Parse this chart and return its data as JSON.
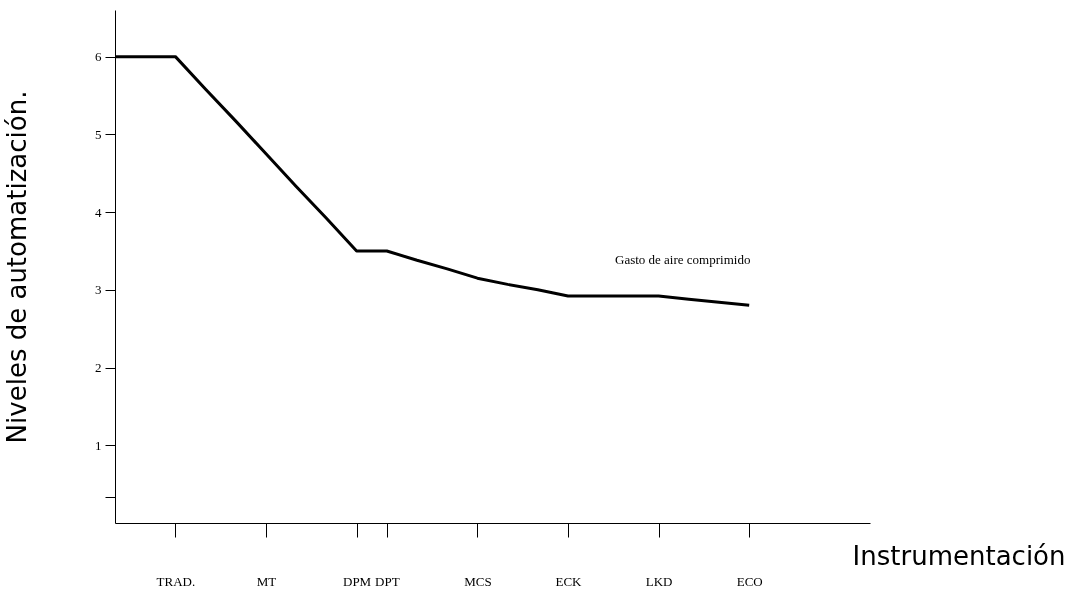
{
  "chart_data": {
    "type": "line",
    "xlabel": "Instrumentación",
    "ylabel": "Niveles de automatización.",
    "categories": [
      null,
      null,
      "TRAD.",
      null,
      null,
      "MT",
      null,
      null,
      "DPM",
      "DPT",
      null,
      null,
      "MCS",
      null,
      null,
      "ECK",
      null,
      null,
      "LKD",
      null,
      null,
      "ECO",
      null,
      null,
      null,
      null
    ],
    "series": [
      {
        "color": "#000000",
        "values": [
          6,
          6,
          6,
          5.58,
          5.17,
          4.75,
          4.33,
          3.92,
          3.5,
          3.5,
          3.38,
          3.27,
          3.15,
          3.07,
          3,
          2.92,
          2.92,
          2.92,
          2.92,
          2.88,
          2.84,
          2.8,
          null,
          null,
          null,
          null
        ]
      }
    ],
    "ylim": [
      0,
      6.6
    ],
    "yticks": [
      {
        "value": 0.33,
        "label": null
      },
      1,
      2,
      3,
      4,
      5,
      6
    ],
    "annotations": [
      "Gasto de aire comprimido"
    ],
    "line_style": "solid"
  }
}
